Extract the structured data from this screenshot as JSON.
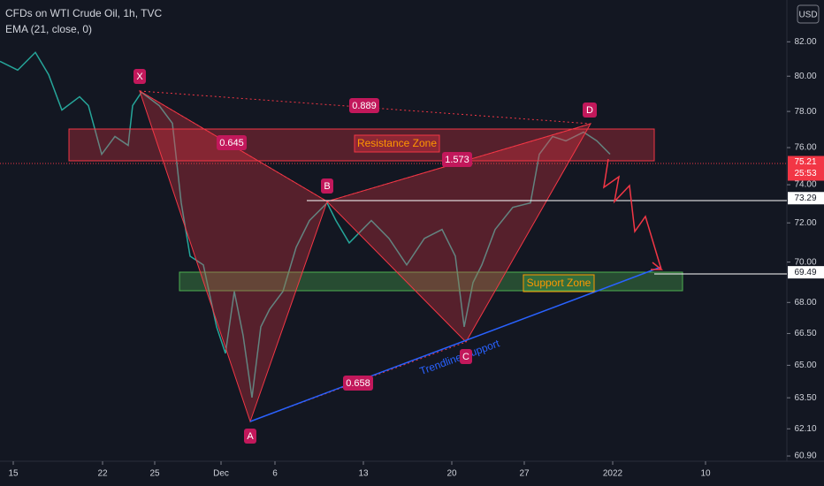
{
  "chart_data": {
    "type": "line",
    "title": "CFDs on WTI Crude Oil, 1h, TVC",
    "subtitle": "EMA (21, close, 0)",
    "currency": "USD",
    "color": "#26a69a",
    "log_scale": true,
    "x": [
      0,
      5,
      10,
      13.75,
      17.5,
      22.5,
      25,
      28.75,
      32.5,
      36.25,
      37.5,
      40,
      45,
      48.75,
      51.25,
      53.75,
      57.5,
      61.25,
      63.75,
      66.25,
      68.75,
      71.25,
      73.75,
      76.25,
      80,
      83.75,
      87.5,
      92.5,
      95,
      98.75,
      102.5,
      105,
      110,
      115,
      120,
      125,
      128.75,
      131.25,
      133.75,
      136.25,
      140,
      145,
      150,
      152.5,
      156.25,
      160,
      165,
      168.75,
      172.5
    ],
    "values": [
      80.86,
      80.35,
      81.38,
      80.09,
      78.08,
      78.83,
      78.33,
      75.64,
      76.61,
      76.12,
      78.33,
      79.08,
      78.33,
      77.34,
      73.04,
      70.3,
      69.86,
      66.82,
      65.56,
      68.54,
      66.4,
      63.51,
      66.82,
      67.67,
      68.54,
      70.75,
      72.12,
      73.04,
      72.12,
      70.97,
      71.66,
      72.12,
      71.2,
      69.86,
      71.2,
      71.66,
      70.3,
      66.82,
      68.98,
      69.86,
      71.66,
      72.81,
      73.04,
      75.64,
      76.61,
      76.37,
      76.85,
      76.37,
      75.64
    ],
    "xlim": [
      0,
      222.5
    ],
    "xticks": [
      {
        "value": 3.75,
        "label": "15"
      },
      {
        "value": 29,
        "label": "22"
      },
      {
        "value": 43.75,
        "label": "25"
      },
      {
        "value": 62.5,
        "label": "Dec"
      },
      {
        "value": 77.75,
        "label": "6"
      },
      {
        "value": 102.75,
        "label": "13"
      },
      {
        "value": 127.75,
        "label": "20"
      },
      {
        "value": 148.25,
        "label": "27"
      },
      {
        "value": 173.25,
        "label": "2022"
      },
      {
        "value": 199.5,
        "label": "10"
      }
    ],
    "ylim": [
      84.5,
      60.67
    ],
    "yticks": [
      {
        "value": 82,
        "label": "82.00"
      },
      {
        "value": 80,
        "label": "80.00"
      },
      {
        "value": 78,
        "label": "78.00"
      },
      {
        "value": 76,
        "label": "76.00"
      },
      {
        "value": 74,
        "label": "74.00"
      },
      {
        "value": 72,
        "label": "72.00"
      },
      {
        "value": 70,
        "label": "70.00"
      },
      {
        "value": 68,
        "label": "68.00"
      },
      {
        "value": 66.5,
        "label": "66.50"
      },
      {
        "value": 65,
        "label": "65.00"
      },
      {
        "value": 63.5,
        "label": "63.50"
      },
      {
        "value": 62.1,
        "label": "62.10"
      },
      {
        "value": 60.9,
        "label": "60.90"
      }
    ],
    "price_labels": [
      {
        "value": 75.21,
        "label": "75.21"
      },
      {
        "value": 73.29,
        "label": "73.29"
      },
      {
        "value": 69.49,
        "label": "69.49"
      }
    ],
    "countdown": "25:53",
    "annotations": {
      "points": [
        "X",
        "A",
        "B",
        "C",
        "D"
      ],
      "ratios": [
        "0.889",
        "0.645",
        "1.573",
        "0.658"
      ],
      "zones": [
        "Resistance Zone",
        "Support Zone"
      ],
      "trendline": "Trendline Support"
    }
  }
}
